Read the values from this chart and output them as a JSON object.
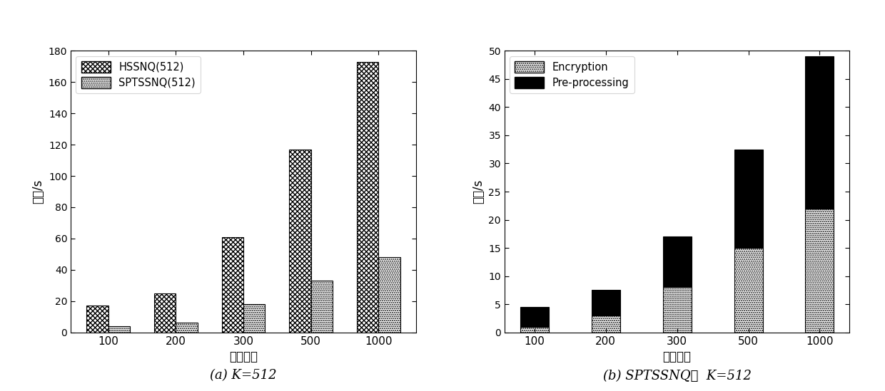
{
  "chart_a": {
    "categories": [
      100,
      200,
      300,
      500,
      1000
    ],
    "hssnq": [
      17,
      25,
      61,
      117,
      173
    ],
    "sptssnq": [
      4,
      6,
      18,
      33,
      48
    ],
    "ylabel": "时间/s",
    "xlabel": "节点个数",
    "ylim": [
      0,
      180
    ],
    "yticks": [
      0,
      20,
      40,
      60,
      80,
      100,
      120,
      140,
      160,
      180
    ],
    "legend_labels": [
      "HSSNQ(512)",
      "SPTSSNQ(512)"
    ],
    "caption": "(a) K=512"
  },
  "chart_b": {
    "categories": [
      100,
      200,
      300,
      500,
      1000
    ],
    "encryption": [
      1.0,
      3.0,
      8.0,
      15.0,
      22.0
    ],
    "preprocessing": [
      3.5,
      4.5,
      9.0,
      17.5,
      27.0
    ],
    "ylabel": "时间/s",
    "xlabel": "节点个数",
    "ylim": [
      0,
      50
    ],
    "yticks": [
      0,
      5,
      10,
      15,
      20,
      25,
      30,
      35,
      40,
      45,
      50
    ],
    "legend_labels": [
      "Encryption",
      "Pre-processing"
    ],
    "caption": "(b) SPTSSNQ，  K=512"
  },
  "background_color": "#ffffff",
  "figure_width": 12.4,
  "figure_height": 5.49
}
